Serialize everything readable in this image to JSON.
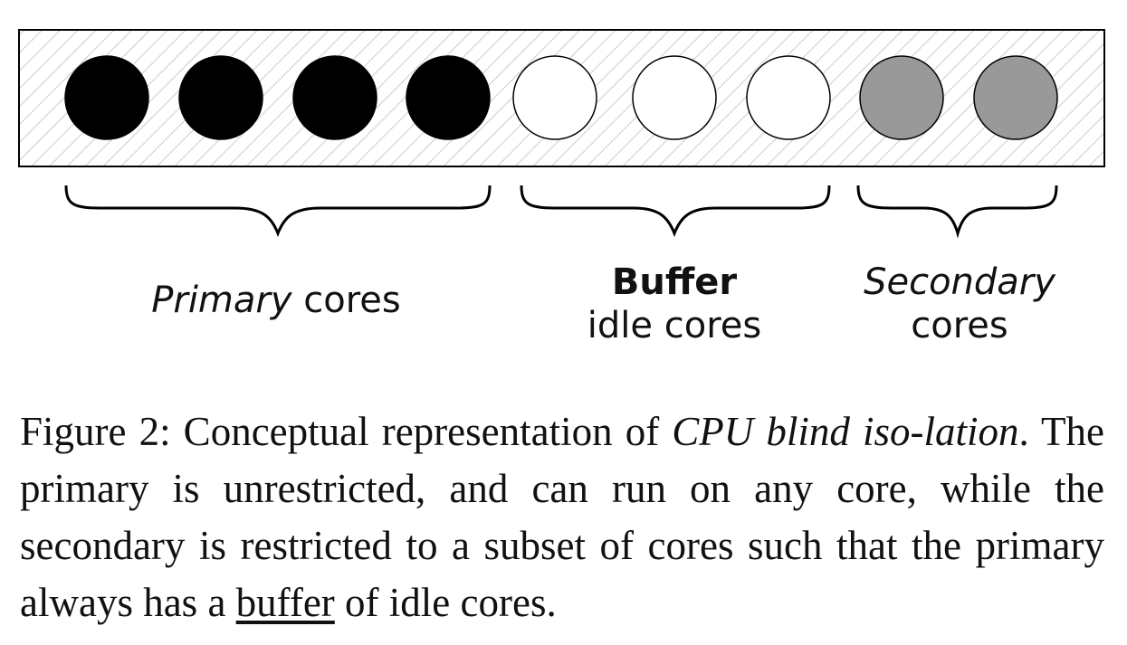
{
  "diagram": {
    "cores": [
      {
        "role": "primary",
        "fill": "#000000"
      },
      {
        "role": "primary",
        "fill": "#000000"
      },
      {
        "role": "primary",
        "fill": "#000000"
      },
      {
        "role": "primary",
        "fill": "#000000"
      },
      {
        "role": "buffer",
        "fill": "#ffffff"
      },
      {
        "role": "buffer",
        "fill": "#ffffff"
      },
      {
        "role": "buffer",
        "fill": "#ffffff"
      },
      {
        "role": "secondary",
        "fill": "#999999"
      },
      {
        "role": "secondary",
        "fill": "#999999"
      }
    ],
    "groups": {
      "primary": {
        "emphasis": "Primary",
        "rest": " cores"
      },
      "buffer": {
        "line1": "Buffer",
        "line2": "idle cores"
      },
      "secondary": {
        "line1": "Secondary",
        "line2": "cores"
      }
    },
    "colors": {
      "hatch": "#cccccc",
      "outline": "#000000",
      "brace": "#000000"
    }
  },
  "caption": {
    "prefix": "Figure 2: Conceptual representation of ",
    "term": "CPU blind iso-lation",
    "middle": ". The primary is unrestricted, and can run on any core, while the secondary is restricted to a subset of cores such that the primary always has a ",
    "underlined": "buffer",
    "suffix": " of idle cores."
  }
}
